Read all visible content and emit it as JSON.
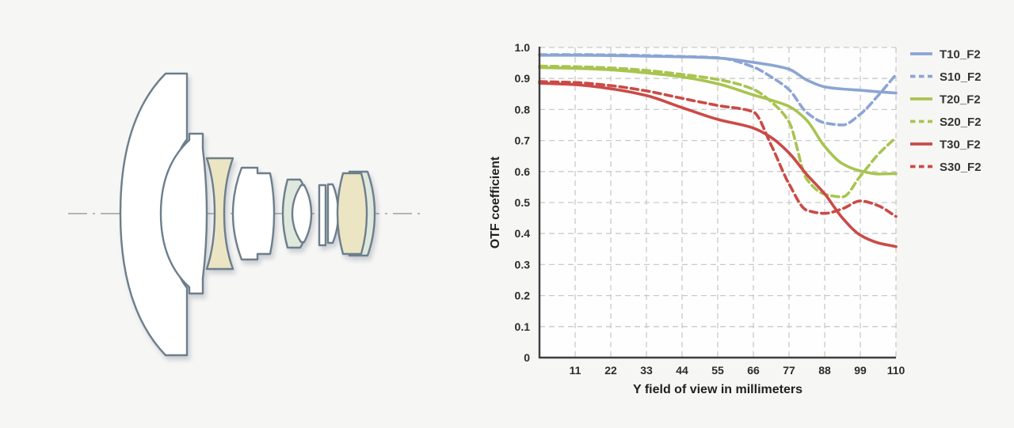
{
  "page": {
    "background_color": "#f6f6f5"
  },
  "lens_diagram": {
    "description": "wide-angle lens cross-section with optical axis",
    "colors": {
      "outline": "#6d7e8b",
      "glass_white": "#ffffff",
      "glass_yellow": "#ebe5c4",
      "glass_green": "#dfe8dd",
      "axis": "#9aa0a4"
    },
    "elements": [
      {
        "name": "front-large-meniscus",
        "tint": "white"
      },
      {
        "name": "second-meniscus",
        "tint": "white"
      },
      {
        "name": "biconcave-element",
        "tint": "yellow"
      },
      {
        "name": "biconvex-element",
        "tint": "white"
      },
      {
        "name": "mid-doublet-meniscus",
        "tint": "green"
      },
      {
        "name": "mid-doublet-inner-lens",
        "tint": "white"
      },
      {
        "name": "flat-plate-element",
        "tint": "white"
      },
      {
        "name": "thin-plano-convex-element",
        "tint": "white"
      },
      {
        "name": "rear-doublet-biconvex",
        "tint": "yellow"
      },
      {
        "name": "rear-doublet-meniscus",
        "tint": "green"
      }
    ]
  },
  "chart_data": {
    "type": "line",
    "title": "",
    "xlabel": "Y field of view in millimeters",
    "ylabel": "OTF coefficient",
    "xlim": [
      0,
      110
    ],
    "ylim": [
      0,
      1.0
    ],
    "x_ticks": [
      11,
      22,
      33,
      44,
      55,
      66,
      77,
      88,
      99,
      110
    ],
    "y_ticks": [
      0,
      0.1,
      0.2,
      0.3,
      0.4,
      0.5,
      0.6,
      0.7,
      0.8,
      0.9,
      1.0
    ],
    "y_tick_labels": [
      "0",
      "0.1",
      "0.2",
      "0.3",
      "0.4",
      "0.5",
      "0.6",
      "0.7",
      "0.8",
      "0.9",
      "1.0"
    ],
    "grid": "dashed",
    "legend_position": "right",
    "style": {
      "grid_color": "#c9c9c9",
      "axis_color": "#3e3e3e",
      "plot_bg": "#fefefe",
      "blue": "#8ba5d3",
      "green": "#a8c44f",
      "red": "#cb4a46"
    },
    "x": [
      0,
      11,
      22,
      33,
      44,
      55,
      66,
      71.5,
      77,
      82.5,
      88,
      93.5,
      99,
      104.5,
      110
    ],
    "series": [
      {
        "name": "T10_F2",
        "color": "#8ba5d3",
        "style": "solid",
        "values": [
          0.975,
          0.975,
          0.974,
          0.972,
          0.97,
          0.966,
          0.952,
          0.943,
          0.93,
          0.895,
          0.873,
          0.866,
          0.862,
          0.857,
          0.853
        ]
      },
      {
        "name": "S10_F2",
        "color": "#8ba5d3",
        "style": "dashed",
        "values": [
          0.977,
          0.977,
          0.976,
          0.974,
          0.971,
          0.967,
          0.937,
          0.905,
          0.864,
          0.79,
          0.757,
          0.75,
          0.785,
          0.845,
          0.913
        ]
      },
      {
        "name": "T20_F2",
        "color": "#a8c44f",
        "style": "solid",
        "values": [
          0.935,
          0.933,
          0.928,
          0.918,
          0.905,
          0.883,
          0.847,
          0.83,
          0.81,
          0.765,
          0.681,
          0.625,
          0.602,
          0.592,
          0.593
        ]
      },
      {
        "name": "S20_F2",
        "color": "#a8c44f",
        "style": "dashed",
        "values": [
          0.94,
          0.938,
          0.934,
          0.926,
          0.913,
          0.897,
          0.865,
          0.825,
          0.76,
          0.575,
          0.527,
          0.518,
          0.585,
          0.655,
          0.71
        ]
      },
      {
        "name": "T30_F2",
        "color": "#cb4a46",
        "style": "solid",
        "values": [
          0.885,
          0.88,
          0.867,
          0.845,
          0.806,
          0.768,
          0.74,
          0.71,
          0.66,
          0.59,
          0.528,
          0.45,
          0.395,
          0.37,
          0.358
        ]
      },
      {
        "name": "S30_F2",
        "color": "#cb4a46",
        "style": "dashed",
        "values": [
          0.89,
          0.887,
          0.877,
          0.86,
          0.836,
          0.813,
          0.792,
          0.685,
          0.56,
          0.475,
          0.465,
          0.48,
          0.505,
          0.49,
          0.455
        ]
      }
    ]
  }
}
